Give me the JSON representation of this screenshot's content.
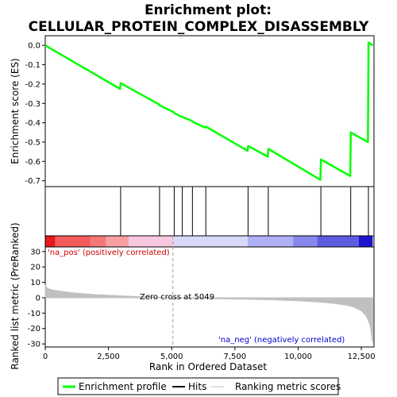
{
  "chart_data": {
    "type": "line",
    "title_line1": "Enrichment plot:",
    "title_line2": "CELLULAR_PROTEIN_COMPLEX_DISASSEMBLY",
    "xlabel": "Rank in Ordered Dataset",
    "ylabel_top": "Enrichment score (ES)",
    "ylabel_bottom": "Ranked list metric (PreRanked)",
    "xlim": [
      0,
      13000
    ],
    "x_ticks": [
      0,
      2500,
      5000,
      7500,
      10000,
      12500
    ],
    "x_tick_labels": [
      "0",
      "2,500",
      "5,000",
      "7,500",
      "10,000",
      "12,500"
    ],
    "es_ylim": [
      -0.73,
      0.05
    ],
    "es_ticks": [
      0.0,
      -0.1,
      -0.2,
      -0.3,
      -0.4,
      -0.5,
      -0.6,
      -0.7
    ],
    "es_tick_labels": [
      "0.0",
      "-0.1",
      "-0.2",
      "-0.3",
      "-0.4",
      "-0.5",
      "-0.6",
      "-0.7"
    ],
    "metric_ylim": [
      -32,
      33
    ],
    "metric_ticks": [
      30,
      20,
      10,
      0,
      -10,
      -20,
      -30
    ],
    "metric_tick_labels": [
      "30",
      "20",
      "10",
      "0",
      "-10",
      "-20",
      "-30"
    ],
    "hits": [
      2980,
      4520,
      5100,
      5420,
      5820,
      6350,
      8020,
      8820,
      10900,
      12080,
      12780
    ],
    "es_curve": {
      "x": [
        0,
        2960,
        2985,
        4500,
        4525,
        5080,
        5105,
        5400,
        5425,
        5800,
        5825,
        6330,
        6355,
        8000,
        8025,
        8800,
        8825,
        10880,
        10905,
        12060,
        12085,
        12760,
        12785,
        12950
      ],
      "y": [
        0.0,
        -0.225,
        -0.195,
        -0.305,
        -0.31,
        -0.345,
        -0.35,
        -0.37,
        -0.37,
        -0.39,
        -0.395,
        -0.425,
        -0.42,
        -0.545,
        -0.52,
        -0.575,
        -0.535,
        -0.695,
        -0.59,
        -0.675,
        -0.45,
        -0.5,
        0.015,
        0.0
      ]
    },
    "metric_profile": {
      "x": [
        0,
        100,
        300,
        700,
        1200,
        2000,
        3000,
        4000,
        5049,
        6000,
        7000,
        8000,
        9000,
        10000,
        10800,
        11400,
        11900,
        12200,
        12500,
        12700,
        12850,
        12950
      ],
      "y": [
        8,
        6,
        5,
        4,
        3,
        2,
        1.2,
        0.5,
        0,
        -0.4,
        -0.7,
        -1,
        -1.4,
        -2,
        -2.8,
        -3.6,
        -4.8,
        -6,
        -8.5,
        -12,
        -18,
        -29
      ]
    },
    "heatmap_segments": [
      {
        "x0": 0,
        "x1": 400,
        "color": "#e8181c"
      },
      {
        "x0": 400,
        "x1": 1800,
        "color": "#f45c5c"
      },
      {
        "x0": 1800,
        "x1": 2400,
        "color": "#f47878"
      },
      {
        "x0": 2400,
        "x1": 3300,
        "color": "#f6a0a2"
      },
      {
        "x0": 3300,
        "x1": 5049,
        "color": "#f8c8e0"
      },
      {
        "x0": 5049,
        "x1": 8000,
        "color": "#d8d8f8"
      },
      {
        "x0": 8000,
        "x1": 9800,
        "color": "#b0b0f4"
      },
      {
        "x0": 9800,
        "x1": 10750,
        "color": "#8888ec"
      },
      {
        "x0": 10750,
        "x1": 12400,
        "color": "#5c5ce0"
      },
      {
        "x0": 12400,
        "x1": 12950,
        "color": "#1c14cc"
      }
    ],
    "zero_cross_rank": 5049,
    "zero_cross_label": "Zero cross at 5049",
    "pos_label": "'na_pos' (positively correlated)",
    "neg_label": "'na_neg' (negatively correlated)",
    "legend": {
      "enrichment": "Enrichment profile",
      "hits": "Hits",
      "ranking": "Ranking metric scores"
    },
    "colors": {
      "es_line": "#00ff00",
      "hits": "#000000",
      "profile_fill": "#c0c0c0",
      "pos_label": "#cc0000",
      "neg_label": "#0000cc",
      "zero_line": "#a0a0a0"
    }
  }
}
